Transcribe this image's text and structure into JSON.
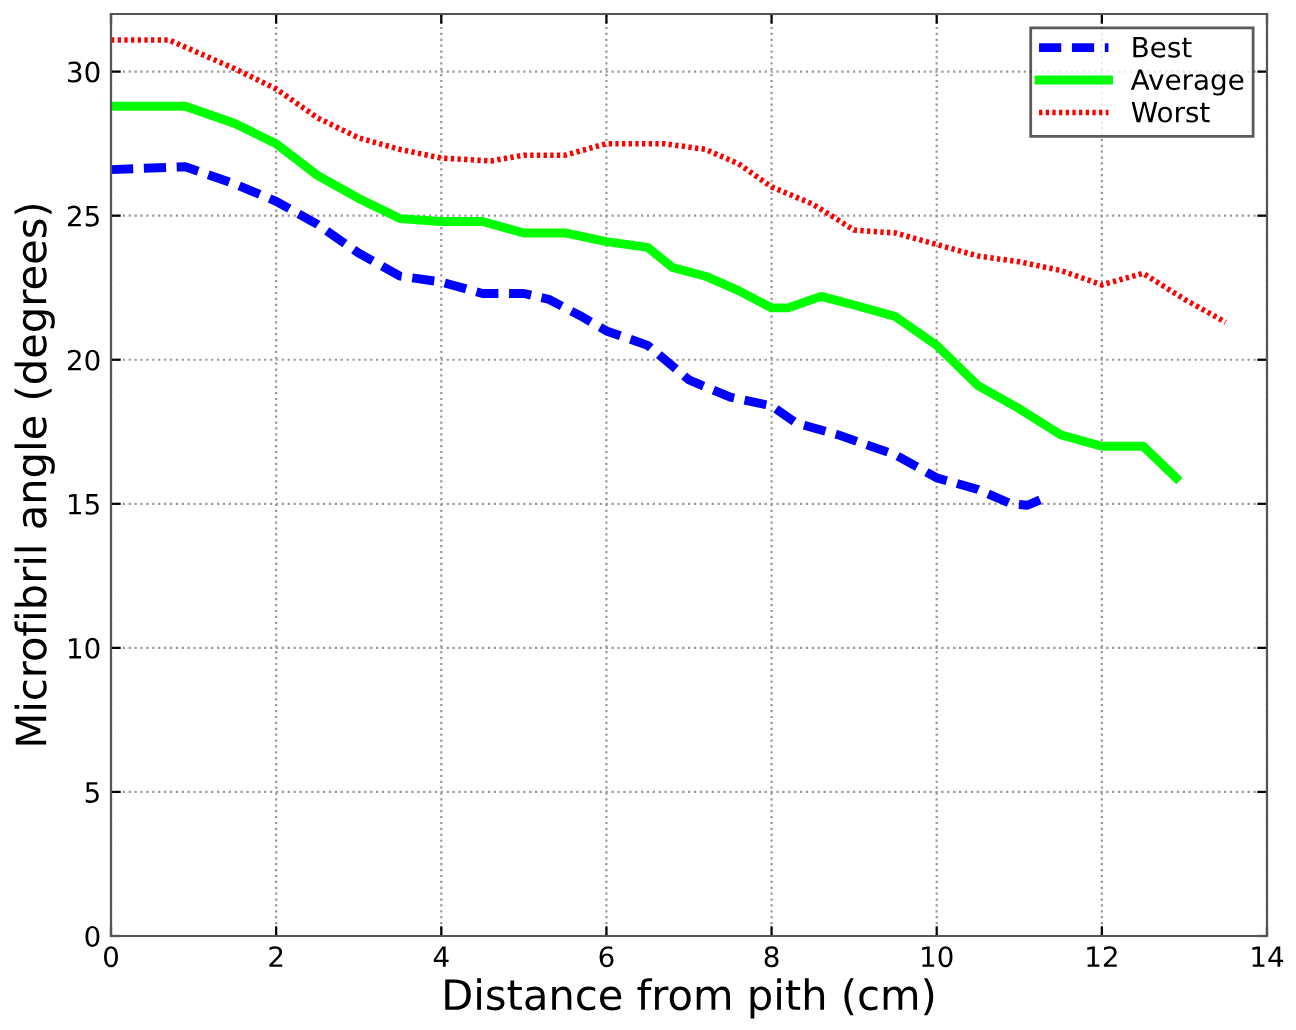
{
  "chart_data": {
    "type": "line",
    "xlabel": "Distance from pith (cm)",
    "ylabel": "Microfibril angle (degrees)",
    "xlim": [
      0,
      14
    ],
    "xticks": [
      0,
      2,
      4,
      6,
      8,
      10,
      12,
      14
    ],
    "ylim": [
      0,
      32
    ],
    "yticks": [
      0,
      5,
      10,
      15,
      20,
      25,
      30
    ],
    "grid": true,
    "legend": "top right",
    "series": [
      {
        "name": "Best",
        "color": "#0000ff",
        "line_style": "dashed",
        "x": [
          0,
          0.9,
          1.5,
          2,
          2.5,
          3,
          3.5,
          4,
          4.5,
          5,
          5.3,
          5.7,
          6,
          6.5,
          7,
          7.5,
          8,
          8.3,
          8.8,
          9.5,
          10,
          10.5,
          10.9,
          11.1,
          11.3
        ],
        "values": [
          26.6,
          26.7,
          26.1,
          25.5,
          24.7,
          23.7,
          22.9,
          22.7,
          22.3,
          22.3,
          22.1,
          21.5,
          21.0,
          20.5,
          19.3,
          18.7,
          18.4,
          17.8,
          17.4,
          16.7,
          15.9,
          15.5,
          15.0,
          14.95,
          15.2
        ]
      },
      {
        "name": "Average",
        "color": "#00ff00",
        "line_style": "solid",
        "x": [
          0,
          0.9,
          1.5,
          2,
          2.5,
          3,
          3.5,
          4,
          4.5,
          5,
          5.5,
          6,
          6.5,
          6.8,
          7.2,
          7.6,
          8,
          8.2,
          8.6,
          9,
          9.5,
          10,
          10.5,
          11,
          11.5,
          12,
          12.5,
          12.9
        ],
        "values": [
          28.8,
          28.8,
          28.2,
          27.5,
          26.4,
          25.6,
          24.9,
          24.8,
          24.8,
          24.4,
          24.4,
          24.1,
          23.9,
          23.2,
          22.9,
          22.4,
          21.8,
          21.8,
          22.2,
          21.9,
          21.5,
          20.5,
          19.1,
          18.3,
          17.4,
          17.0,
          17.0,
          15.9
        ]
      },
      {
        "name": "Worst",
        "color": "#ff0000",
        "line_style": "dotted",
        "x": [
          0,
          0.7,
          1.5,
          2,
          2.5,
          3,
          3.5,
          4,
          4.6,
          5,
          5.5,
          6,
          6.7,
          7.2,
          7.6,
          8,
          8.5,
          9,
          9.5,
          10,
          10.5,
          11,
          11.5,
          12,
          12.5,
          13,
          13.5
        ],
        "values": [
          31.1,
          31.1,
          30.1,
          29.4,
          28.4,
          27.7,
          27.3,
          27.0,
          26.9,
          27.1,
          27.1,
          27.5,
          27.5,
          27.3,
          26.8,
          26.0,
          25.4,
          24.5,
          24.4,
          24.0,
          23.6,
          23.4,
          23.1,
          22.6,
          23.0,
          22.1,
          21.3
        ]
      }
    ]
  }
}
